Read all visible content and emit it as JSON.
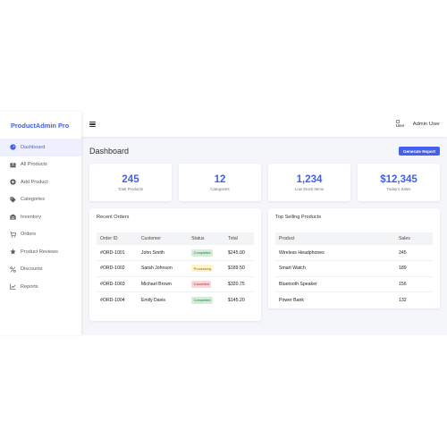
{
  "brand": "ProductAdmin Pro",
  "sidebar": {
    "items": [
      {
        "label": "Dashboard",
        "icon": "gauge-icon",
        "active": true
      },
      {
        "label": "All Products",
        "icon": "boxes-icon",
        "active": false
      },
      {
        "label": "Add Product",
        "icon": "plus-circle-icon",
        "active": false
      },
      {
        "label": "Categories",
        "icon": "tag-icon",
        "active": false
      },
      {
        "label": "Inventory",
        "icon": "warehouse-icon",
        "active": false
      },
      {
        "label": "Orders",
        "icon": "cart-icon",
        "active": false
      },
      {
        "label": "Product Reviews",
        "icon": "star-icon",
        "active": false
      },
      {
        "label": "Discounts",
        "icon": "percent-icon",
        "active": false
      },
      {
        "label": "Reports",
        "icon": "chart-icon",
        "active": false
      }
    ]
  },
  "topbar": {
    "avatar_alt": "User",
    "user_name": "Admin User"
  },
  "page": {
    "title": "Dashboard",
    "generate_report": "Generate Report"
  },
  "stats": [
    {
      "value": "245",
      "label": "Total Products"
    },
    {
      "value": "12",
      "label": "Categories"
    },
    {
      "value": "1,234",
      "label": "Low Stock Items"
    },
    {
      "value": "$12,345",
      "label": "Today's Sales"
    }
  ],
  "recent_orders": {
    "title": "Recent Orders",
    "headers": [
      "Order ID",
      "Customer",
      "Status",
      "Total"
    ],
    "rows": [
      {
        "id": "#ORD-1001",
        "customer": "John Smith",
        "status": "Completed",
        "status_type": "completed",
        "total": "$245.00"
      },
      {
        "id": "#ORD-1002",
        "customer": "Sarah Johnson",
        "status": "Processing",
        "status_type": "processing",
        "total": "$189.50"
      },
      {
        "id": "#ORD-1003",
        "customer": "Michael Brown",
        "status": "Cancelled",
        "status_type": "cancelled",
        "total": "$320.75"
      },
      {
        "id": "#ORD-1004",
        "customer": "Emily Davis",
        "status": "Completed",
        "status_type": "completed",
        "total": "$145.20"
      }
    ]
  },
  "top_selling": {
    "title": "Top Selling Products",
    "headers": [
      "Product",
      "Sales"
    ],
    "rows": [
      {
        "product": "Wireless Headphones",
        "sales": "245"
      },
      {
        "product": "Smart Watch",
        "sales": "189"
      },
      {
        "product": "Bluetooth Speaker",
        "sales": "156"
      },
      {
        "product": "Power Bank",
        "sales": "132"
      }
    ]
  },
  "colors": {
    "accent": "#4361ee",
    "background": "#f5f6fa",
    "completed_bg": "#d4edda",
    "processing_bg": "#fff3cd",
    "cancelled_bg": "#f8d7da"
  }
}
